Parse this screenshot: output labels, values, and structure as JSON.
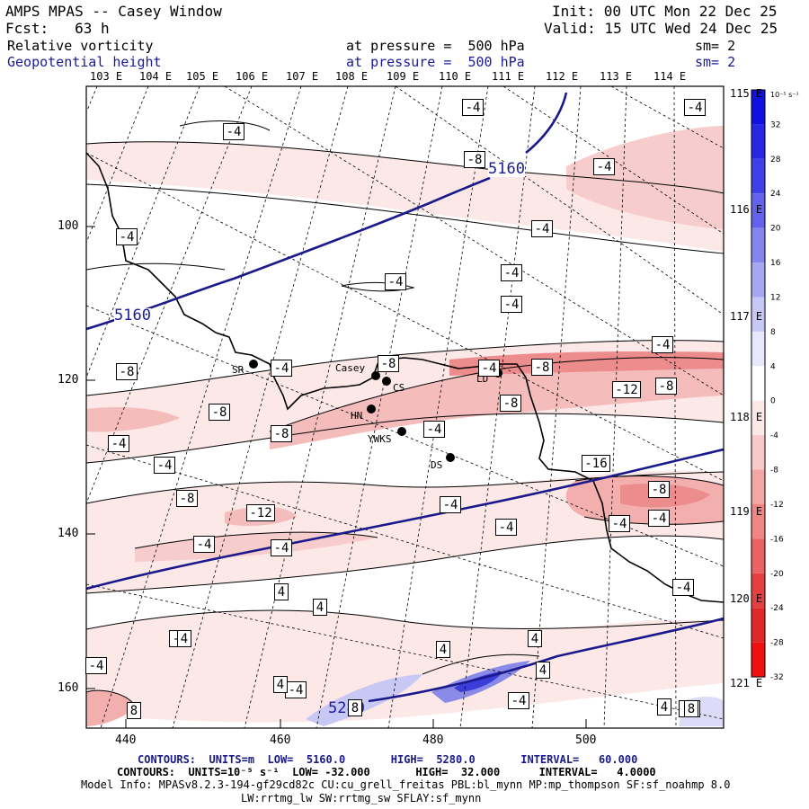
{
  "header": {
    "title": "AMPS MPAS -- Casey Window",
    "init": "Init: 00 UTC Mon 22 Dec 25",
    "fcst": "Fcst:   63 h",
    "valid": "Valid: 15 UTC Wed 24 Dec 25",
    "field1": {
      "name": "Relative vorticity",
      "level": "at pressure =  500 hPa",
      "smooth": "sm= 2"
    },
    "field2": {
      "name": "Geopotential height",
      "level": "at pressure =  500 hPa",
      "smooth": "sm= 2"
    }
  },
  "axes": {
    "lon_top": [
      "103 E",
      "104 E",
      "105 E",
      "106 E",
      "107 E",
      "108 E",
      "109 E",
      "110 E",
      "111 E",
      "112 E",
      "113 E",
      "114 E"
    ],
    "lat_right": [
      "115 E",
      "116 E",
      "117 E",
      "118 E",
      "119 E",
      "120 E",
      "121 E"
    ],
    "y_left": [
      "100",
      "120",
      "140",
      "160"
    ],
    "x_bottom": [
      "440",
      "460",
      "480",
      "500"
    ]
  },
  "colorbar": {
    "unit": "10⁻⁵ s⁻¹",
    "ticks": [
      "32",
      "28",
      "24",
      "20",
      "16",
      "12",
      "8",
      "4",
      "0",
      "-4",
      "-8",
      "-12",
      "-16",
      "-20",
      "-24",
      "-28",
      "-32"
    ]
  },
  "stations": [
    {
      "label": "SR"
    },
    {
      "label": "Casey"
    },
    {
      "label": "CS"
    },
    {
      "label": "HN"
    },
    {
      "label": "YWKS"
    },
    {
      "label": "DS"
    },
    {
      "label": "LD"
    }
  ],
  "height_contour_labels": [
    "5160",
    "5160",
    "5280"
  ],
  "vorticity_labels": [
    "-4",
    "-4",
    "-4",
    "-8",
    "-4",
    "-4",
    "-4",
    "-4",
    "-4",
    "-4",
    "-4",
    "-8",
    "-8",
    "-4",
    "-8",
    "-4",
    "-12",
    "-8",
    "-8",
    "-8",
    "-8",
    "-4",
    "-4",
    "-4",
    "-16",
    "-8",
    "-12",
    "-8",
    "-4",
    "-4",
    "-4",
    "-4",
    "-4",
    "-4",
    "4",
    "-4",
    "4",
    "-4",
    "4",
    "4",
    "-4",
    "4",
    "-4",
    "8",
    "-4",
    "8",
    "4",
    "-4",
    "4",
    "4",
    "8"
  ],
  "footer": {
    "contours1": "CONTOURS:  UNITS=m  LOW=  5160.0       HIGH=  5280.0       INTERVAL=   60.000",
    "contours2": "CONTOURS:  UNITS=10⁻⁵ s⁻¹  LOW= -32.000       HIGH=  32.000      INTERVAL=   4.0000",
    "model_info": "Model Info: MPASv8.2.3-194-gf29cd82c CU:cu_grell_freitas PBL:bl_mynn MP:mp_thompson SF:sf_noahmp 8.0",
    "model_info2": "LW:rrtmg_lw SW:rrtmg_sw SFLAY:sf_mynn"
  },
  "colors": {
    "height_contour": "#1a1a8c",
    "neg_light": "#fde8e8",
    "neg_mid": "#f5bcbc",
    "neg_strong": "#ec8c8c",
    "pos_light": "#dcdcf8",
    "pos_strong": "#3c3cd8"
  }
}
